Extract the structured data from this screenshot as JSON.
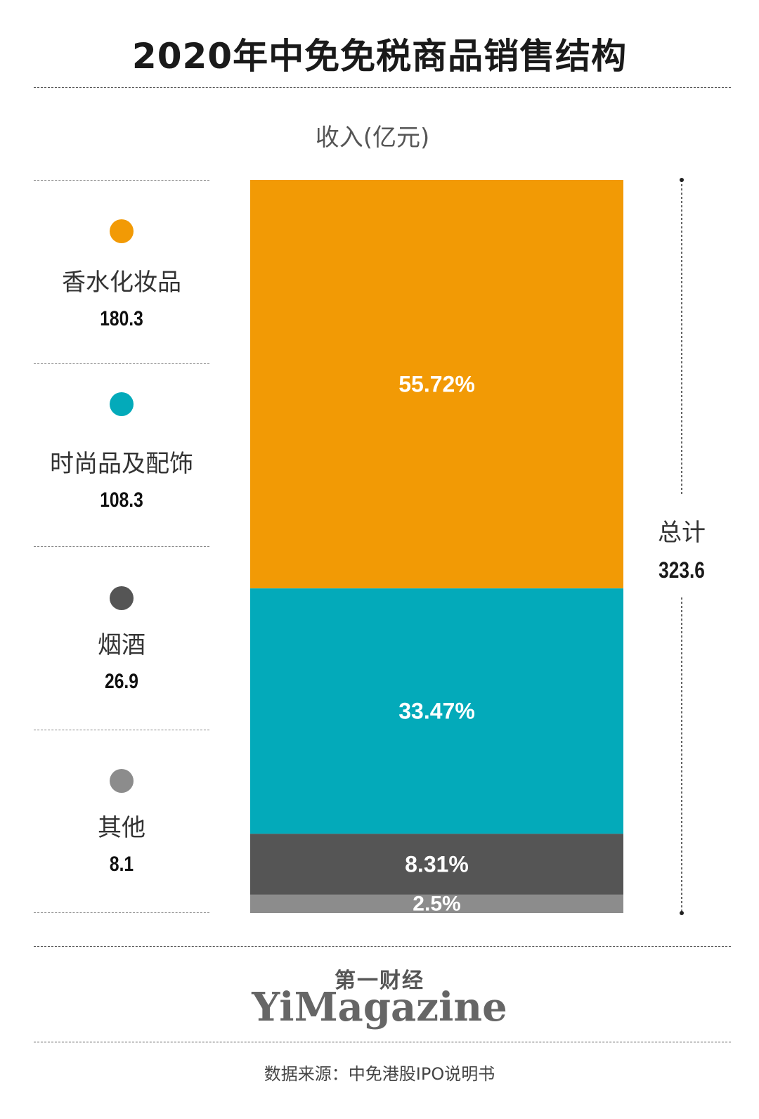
{
  "title": "2020年中免免税商品销售结构",
  "colors": {
    "cosmetics": "#F29A05",
    "fashion": "#03AABA",
    "tobacco": "#555555",
    "other": "#8C8C8C"
  },
  "chart_data": {
    "type": "bar",
    "stacked": true,
    "title": "2020年中免免税商品销售结构",
    "ylabel": "收入(亿元)",
    "categories": [
      "香水化妆品",
      "时尚品及配饰",
      "烟酒",
      "其他"
    ],
    "values": [
      180.3,
      108.3,
      26.9,
      8.1
    ],
    "percent_labels": [
      "55.72%",
      "33.47%",
      "8.31%",
      "2.5%"
    ],
    "value_labels": [
      "180.3",
      "108.3",
      "26.9",
      "8.1"
    ],
    "total_label": "总计",
    "total_value": "323.6",
    "total": 323.6
  },
  "branding": {
    "cn": "第一财经",
    "en": "YiMagazine"
  },
  "source": "数据来源：中免港股IPO说明书"
}
